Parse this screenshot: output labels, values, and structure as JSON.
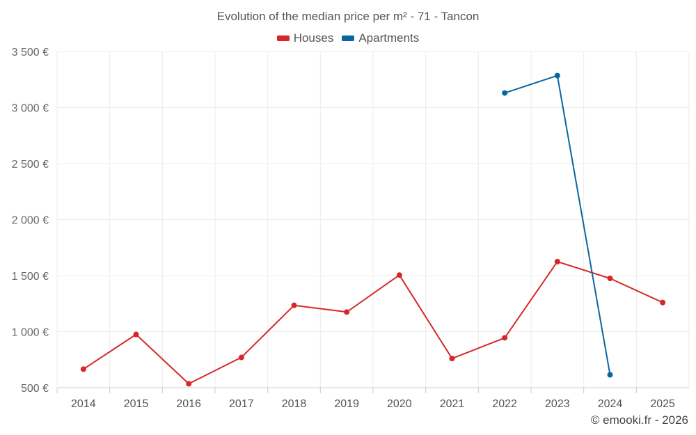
{
  "chart_data": {
    "type": "line",
    "title": "Evolution of the median price per m² - 71 - Tancon",
    "categories": [
      "2014",
      "2015",
      "2016",
      "2017",
      "2018",
      "2019",
      "2020",
      "2021",
      "2022",
      "2023",
      "2024",
      "2025"
    ],
    "series": [
      {
        "name": "Houses",
        "color": "#d62728",
        "values": [
          665,
          975,
          535,
          770,
          1235,
          1175,
          1505,
          760,
          945,
          1625,
          1475,
          1260
        ]
      },
      {
        "name": "Apartments",
        "color": "#0a66a0",
        "values": [
          null,
          null,
          null,
          null,
          null,
          null,
          null,
          null,
          3130,
          3285,
          615,
          null
        ]
      }
    ],
    "y_ticks": [
      {
        "value": 500,
        "label": "500 €"
      },
      {
        "value": 1000,
        "label": "1 000 €"
      },
      {
        "value": 1500,
        "label": "1 500 €"
      },
      {
        "value": 2000,
        "label": "2 000 €"
      },
      {
        "value": 2500,
        "label": "2 500 €"
      },
      {
        "value": 3000,
        "label": "3 000 €"
      },
      {
        "value": 3500,
        "label": "3 500 €"
      }
    ],
    "ylim": [
      500,
      3500
    ],
    "xlabel": "",
    "ylabel": "",
    "grid": true,
    "legend_position": "top-center"
  },
  "credit": "© emooki.fr - 2026"
}
